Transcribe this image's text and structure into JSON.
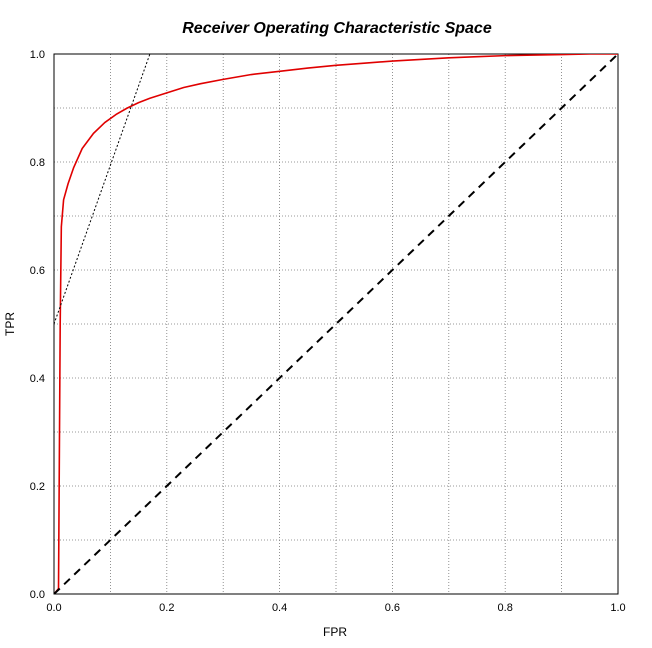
{
  "chart_data": {
    "type": "line",
    "title": "Receiver Operating Characteristic Space",
    "xlabel": "FPR",
    "ylabel": "TPR",
    "xlim": [
      0,
      1
    ],
    "ylim": [
      0,
      1
    ],
    "grid": true,
    "x_ticks": [
      {
        "value": 0,
        "label": "0.0"
      },
      {
        "value": 0.2,
        "label": "0.2"
      },
      {
        "value": 0.4,
        "label": "0.4"
      },
      {
        "value": 0.6,
        "label": "0.6"
      },
      {
        "value": 0.8,
        "label": "0.8"
      },
      {
        "value": 1,
        "label": "1.0"
      }
    ],
    "y_ticks": [
      {
        "value": 0,
        "label": "0.0"
      },
      {
        "value": 0.2,
        "label": "0.2"
      },
      {
        "value": 0.4,
        "label": "0.4"
      },
      {
        "value": 0.6,
        "label": "0.6"
      },
      {
        "value": 0.8,
        "label": "0.8"
      },
      {
        "value": 1,
        "label": "1.0"
      }
    ],
    "series": [
      {
        "color": "#e00000",
        "style": "solid",
        "points": [
          [
            0.0,
            0.0
          ],
          [
            0.008,
            0.01
          ],
          [
            0.011,
            0.5
          ],
          [
            0.013,
            0.68
          ],
          [
            0.017,
            0.73
          ],
          [
            0.025,
            0.76
          ],
          [
            0.035,
            0.79
          ],
          [
            0.05,
            0.825
          ],
          [
            0.07,
            0.853
          ],
          [
            0.09,
            0.873
          ],
          [
            0.11,
            0.888
          ],
          [
            0.13,
            0.9
          ],
          [
            0.15,
            0.91
          ],
          [
            0.17,
            0.918
          ],
          [
            0.2,
            0.928
          ],
          [
            0.23,
            0.938
          ],
          [
            0.26,
            0.945
          ],
          [
            0.3,
            0.953
          ],
          [
            0.35,
            0.962
          ],
          [
            0.4,
            0.968
          ],
          [
            0.45,
            0.974
          ],
          [
            0.5,
            0.979
          ],
          [
            0.55,
            0.983
          ],
          [
            0.6,
            0.987
          ],
          [
            0.65,
            0.99
          ],
          [
            0.7,
            0.993
          ],
          [
            0.75,
            0.995
          ],
          [
            0.8,
            0.997
          ],
          [
            0.85,
            0.998
          ],
          [
            0.9,
            0.999
          ],
          [
            0.95,
            1.0
          ],
          [
            1.0,
            1.0
          ]
        ]
      },
      {
        "color": "#000000",
        "style": "dashed",
        "points": [
          [
            0,
            0
          ],
          [
            1,
            1
          ]
        ]
      },
      {
        "color": "#000000",
        "style": "dotted",
        "points": [
          [
            0,
            0.5
          ],
          [
            0.17,
            1.0
          ]
        ]
      }
    ]
  }
}
